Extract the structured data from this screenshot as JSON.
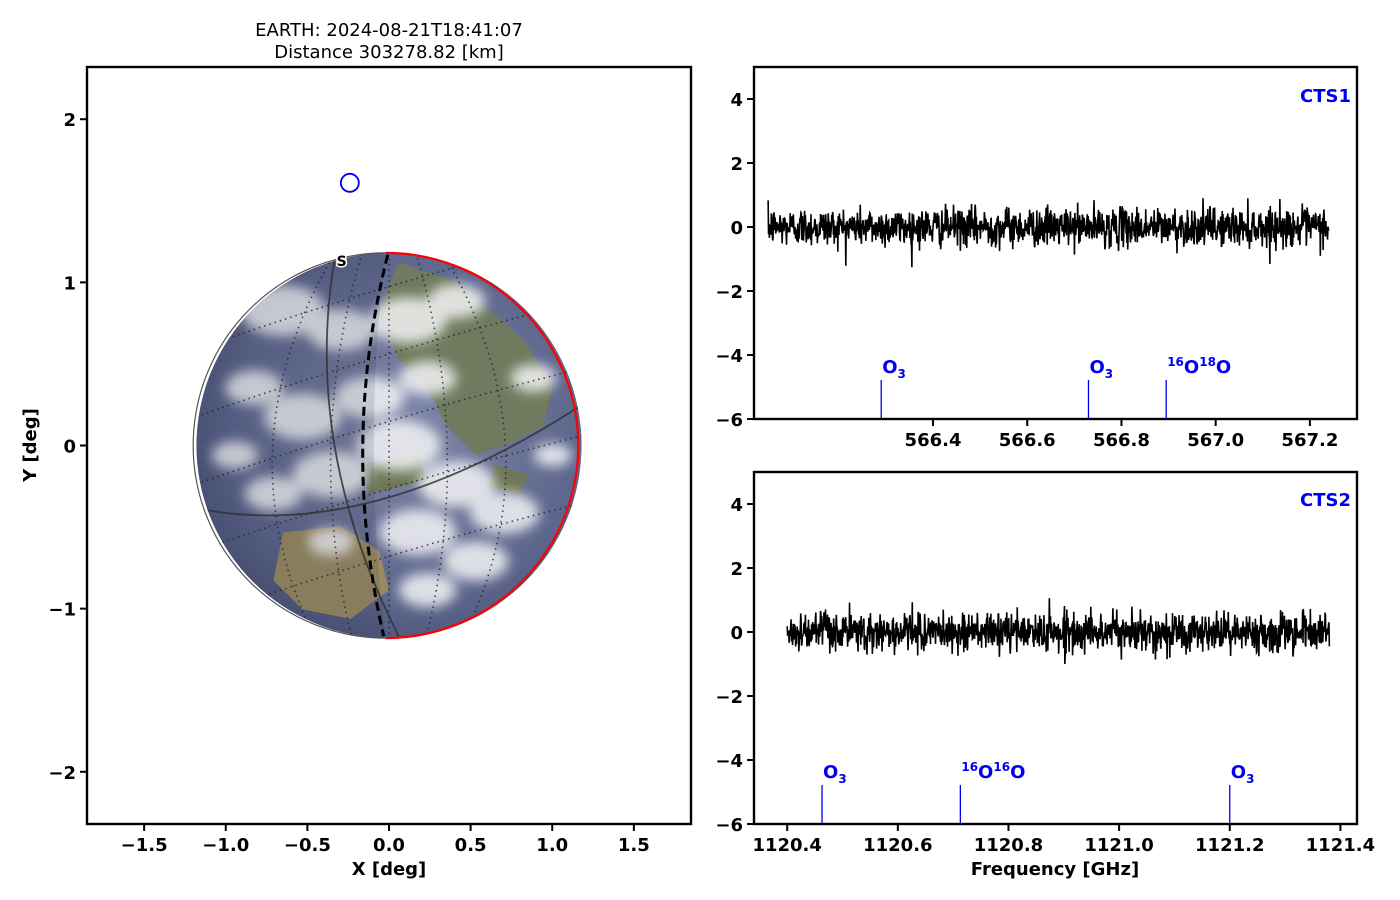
{
  "chart_data": [
    {
      "type": "scatter",
      "title": "EARTH: 2024-08-21T18:41:07",
      "subtitle": "Distance 303278.82 [km]",
      "xlabel": "X [deg]",
      "ylabel": "Y [deg]",
      "xlim": [
        -1.85,
        1.85
      ],
      "ylim": [
        -2.32,
        2.32
      ],
      "xticks": [
        -1.5,
        -1.0,
        -0.5,
        0.0,
        0.5,
        1.0,
        1.5
      ],
      "xticklabels": [
        "−1.5",
        "−1.0",
        "−0.5",
        "0.0",
        "0.5",
        "1.0",
        "1.5"
      ],
      "yticks": [
        -2,
        -1,
        0,
        1,
        2
      ],
      "yticklabels": [
        "−2",
        "−1",
        "0",
        "1",
        "2"
      ],
      "earth_disk": {
        "center": [
          0.0,
          0.0
        ],
        "radius_deg": 1.18,
        "terminator_x_deg": -0.02
      },
      "pole_marker": {
        "label": "S",
        "x": -0.29,
        "y": 1.1
      },
      "target_marker": {
        "x": -0.24,
        "y": 1.61,
        "color": "#0000ee"
      },
      "limb_color": "#ff0000"
    },
    {
      "type": "line",
      "panel_label": "CTS1",
      "xlim": [
        566.02,
        567.3
      ],
      "ylim": [
        -6,
        5
      ],
      "xticks": [
        566.4,
        566.6,
        566.8,
        567.0,
        567.2
      ],
      "xticklabels": [
        "566.4",
        "566.6",
        "566.8",
        "567.0",
        "567.2"
      ],
      "yticks": [
        -6,
        -4,
        -2,
        0,
        2,
        4
      ],
      "yticklabels": [
        "−6",
        "−4",
        "−2",
        "0",
        "2",
        "4"
      ],
      "series_range": [
        566.05,
        567.24
      ],
      "noise_sigma": 0.3,
      "lines": [
        {
          "x": 566.29,
          "main": "O",
          "sub": "3",
          "sup1": "",
          "mid": "",
          "sup2": "",
          "tail": ""
        },
        {
          "x": 566.73,
          "main": "O",
          "sub": "3",
          "sup1": "",
          "mid": "",
          "sup2": "",
          "tail": ""
        },
        {
          "x": 566.895,
          "main": "",
          "sub": "",
          "sup1": "16",
          "mid": "O",
          "sup2": "18",
          "tail": "O"
        }
      ],
      "line_color": "#0000ee",
      "series_color": "#000000"
    },
    {
      "type": "line",
      "panel_label": "CTS2",
      "xlabel": "Frequency [GHz]",
      "xlim": [
        1120.34,
        1121.43
      ],
      "ylim": [
        -6,
        5
      ],
      "xticks": [
        1120.4,
        1120.6,
        1120.8,
        1121.0,
        1121.2,
        1121.4
      ],
      "xticklabels": [
        "1120.4",
        "1120.6",
        "1120.8",
        "1121.0",
        "1121.2",
        "1121.4"
      ],
      "yticks": [
        -6,
        -4,
        -2,
        0,
        2,
        4
      ],
      "yticklabels": [
        "−6",
        "−4",
        "−2",
        "0",
        "2",
        "4"
      ],
      "series_range": [
        1120.4,
        1121.38
      ],
      "noise_sigma": 0.3,
      "lines": [
        {
          "x": 1120.463,
          "main": "O",
          "sub": "3",
          "sup1": "",
          "mid": "",
          "sup2": "",
          "tail": ""
        },
        {
          "x": 1120.713,
          "main": "",
          "sub": "",
          "sup1": "16",
          "mid": "O",
          "sup2": "16",
          "tail": "O"
        },
        {
          "x": 1121.2,
          "main": "O",
          "sub": "3",
          "sup1": "",
          "mid": "",
          "sup2": "",
          "tail": ""
        }
      ],
      "line_color": "#0000ee",
      "series_color": "#000000"
    }
  ]
}
